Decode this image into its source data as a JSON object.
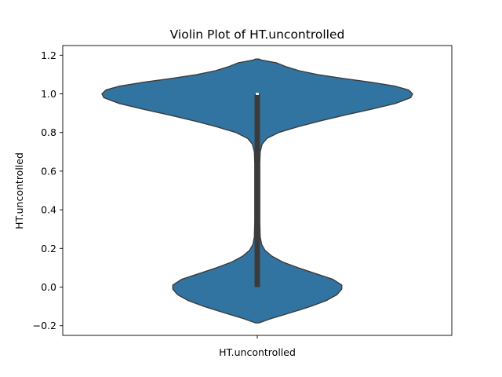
{
  "chart_data": {
    "type": "violin",
    "title": "Violin Plot of HT.uncontrolled",
    "xlabel": "",
    "ylabel": "HT.uncontrolled",
    "categories": [
      "HT.uncontrolled"
    ],
    "ylim": [
      -0.25,
      1.25
    ],
    "yticks": [
      -0.2,
      0.0,
      0.2,
      0.4,
      0.6,
      0.8,
      1.0,
      1.2
    ],
    "ytick_labels": [
      "−0.2",
      "0.0",
      "0.2",
      "0.4",
      "0.6",
      "0.8",
      "1.0",
      "1.2"
    ],
    "grid": false,
    "fill_color": "#3274a1",
    "edge_color": "#3b3b3b",
    "box_color": "#3b3b3b",
    "median_color": "#ffffff",
    "violin": {
      "min": -0.185,
      "max": 1.18,
      "q1": 0.0,
      "median": 1.0,
      "q3": 1.0,
      "whisker_low": 0.0,
      "whisker_high": 1.0,
      "density_profile": [
        [
          -0.185,
          0.02
        ],
        [
          -0.16,
          0.16
        ],
        [
          -0.13,
          0.36
        ],
        [
          -0.1,
          0.55
        ],
        [
          -0.07,
          0.71
        ],
        [
          -0.04,
          0.82
        ],
        [
          -0.01,
          0.87
        ],
        [
          0.01,
          0.87
        ],
        [
          0.04,
          0.78
        ],
        [
          0.07,
          0.6
        ],
        [
          0.1,
          0.42
        ],
        [
          0.13,
          0.26
        ],
        [
          0.16,
          0.15
        ],
        [
          0.19,
          0.08
        ],
        [
          0.22,
          0.045
        ],
        [
          0.26,
          0.03
        ],
        [
          0.34,
          0.026
        ],
        [
          0.5,
          0.026
        ],
        [
          0.64,
          0.026
        ],
        [
          0.7,
          0.03
        ],
        [
          0.74,
          0.05
        ],
        [
          0.77,
          0.1
        ],
        [
          0.8,
          0.22
        ],
        [
          0.83,
          0.42
        ],
        [
          0.86,
          0.65
        ],
        [
          0.89,
          0.9
        ],
        [
          0.92,
          1.17
        ],
        [
          0.95,
          1.42
        ],
        [
          0.98,
          1.58
        ],
        [
          1.0,
          1.6
        ],
        [
          1.02,
          1.56
        ],
        [
          1.04,
          1.42
        ],
        [
          1.06,
          1.17
        ],
        [
          1.08,
          0.88
        ],
        [
          1.1,
          0.62
        ],
        [
          1.12,
          0.43
        ],
        [
          1.14,
          0.3
        ],
        [
          1.16,
          0.2
        ],
        [
          1.175,
          0.04
        ],
        [
          1.18,
          0.02
        ]
      ]
    }
  }
}
